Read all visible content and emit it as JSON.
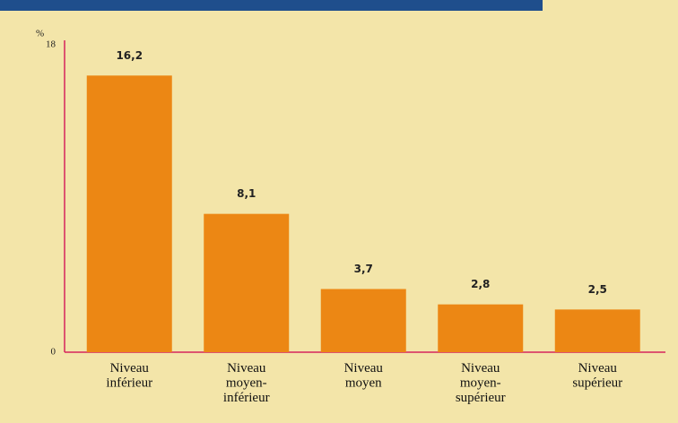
{
  "chart_data": {
    "type": "bar",
    "y_label": "%",
    "categories": [
      "Niveau\ninférieur",
      "Niveau\nmoyen-\ninférieur",
      "Niveau\nmoyen",
      "Niveau\nmoyen-\nsupérieur",
      "Niveau\nsupérieur"
    ],
    "values": [
      16.2,
      8.1,
      3.7,
      2.8,
      2.5
    ],
    "value_labels": [
      "16,2",
      "8,1",
      "3,7",
      "2,8",
      "2,5"
    ],
    "color": "#ec8714",
    "ylim": [
      0,
      18
    ],
    "yticks": [
      0,
      18
    ],
    "grid": false
  }
}
